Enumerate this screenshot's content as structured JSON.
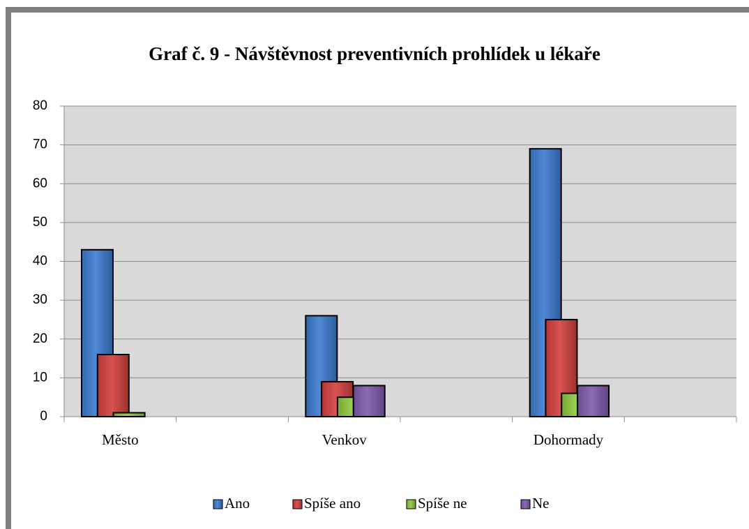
{
  "chart_data": {
    "type": "bar",
    "title": "Graf č. 9 - Návštěvnost preventivních prohlídek u lékaře",
    "categories": [
      "Město",
      null,
      "Venkov",
      null,
      "Dohormady",
      null
    ],
    "series": [
      {
        "name": "Ano",
        "color": "#3b7bd0",
        "values": [
          43,
          null,
          26,
          null,
          69,
          null
        ]
      },
      {
        "name": "Spíše ano",
        "color": "#d2403c",
        "values": [
          16,
          null,
          9,
          null,
          25,
          null
        ]
      },
      {
        "name": "Spíše ne",
        "color": "#8dc63f",
        "values": [
          1,
          null,
          5,
          null,
          6,
          null
        ]
      },
      {
        "name": "Ne",
        "color": "#7e5aaa",
        "values": [
          0,
          null,
          8,
          null,
          8,
          null
        ]
      }
    ],
    "ylim": [
      0,
      80
    ],
    "yticks": [
      0,
      10,
      20,
      30,
      40,
      50,
      60,
      70,
      80
    ],
    "grid": true,
    "legend": "bottom"
  }
}
